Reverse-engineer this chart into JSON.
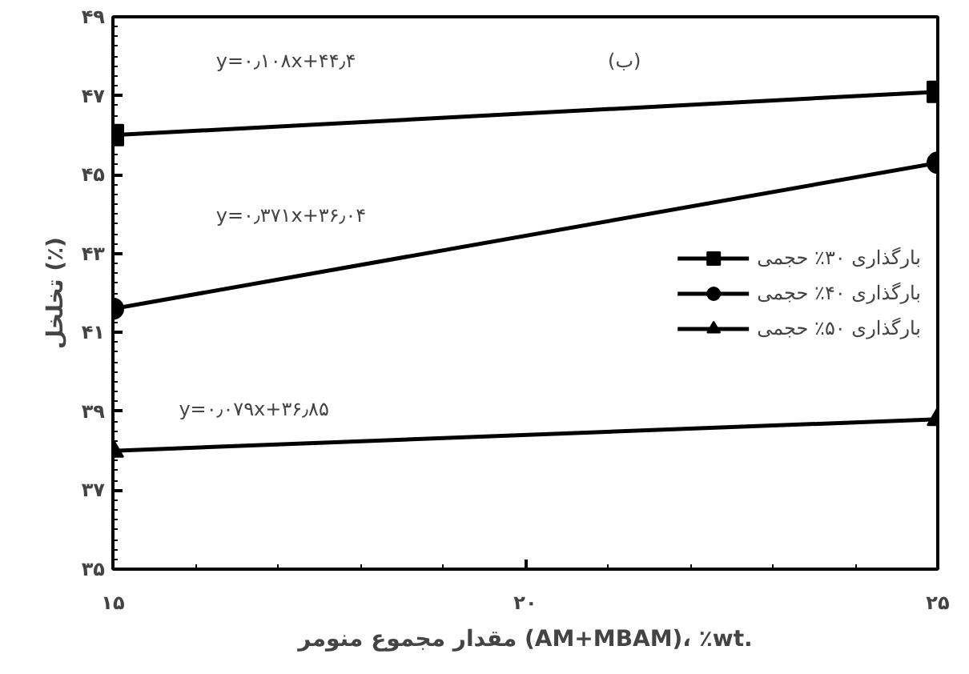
{
  "chart_data": {
    "type": "line",
    "xlabel": "مقدار مجموع منومر (AM+MBAM)، ٪wt.",
    "ylabel": "تخلخل (٪)",
    "x": [
      15,
      25
    ],
    "series": [
      {
        "name": "بارگذاری ۳۰٪ حجمی",
        "color": "#000000",
        "marker": "square",
        "values": [
          46.0,
          47.1
        ]
      },
      {
        "name": "بارگذاری ۴۰٪ حجمی",
        "color": "#000000",
        "marker": "circle",
        "values": [
          41.6,
          45.3
        ]
      },
      {
        "name": "بارگذاری ۵۰٪ حجمی",
        "color": "#000000",
        "marker": "triangle",
        "values": [
          38.0,
          38.8
        ]
      }
    ],
    "xlim": [
      15,
      25
    ],
    "ylim": [
      35,
      49
    ],
    "xticks": [
      {
        "value": 15,
        "label": "۱۵"
      },
      {
        "value": 20,
        "label": "۲۰"
      },
      {
        "value": 25,
        "label": "۲۵"
      }
    ],
    "yticks": [
      {
        "value": 35,
        "label": "۳۵"
      },
      {
        "value": 37,
        "label": "۳۷"
      },
      {
        "value": 39,
        "label": "۳۹"
      },
      {
        "value": 41,
        "label": "۴۱"
      },
      {
        "value": 43,
        "label": "۴۳"
      },
      {
        "value": 45,
        "label": "۴۵"
      },
      {
        "value": 47,
        "label": "۴۷"
      },
      {
        "value": 49,
        "label": "۴۹"
      }
    ],
    "grid": false,
    "legend": "right",
    "line_style": "solid",
    "annotations": [
      "y=۰٫۱۰۸x+۴۴٫۴",
      "(ب)",
      "y=۰٫۳۷۱x+۳۶٫۰۴",
      "y=۰٫۰۷۹x+۳۶٫۸۵"
    ]
  }
}
